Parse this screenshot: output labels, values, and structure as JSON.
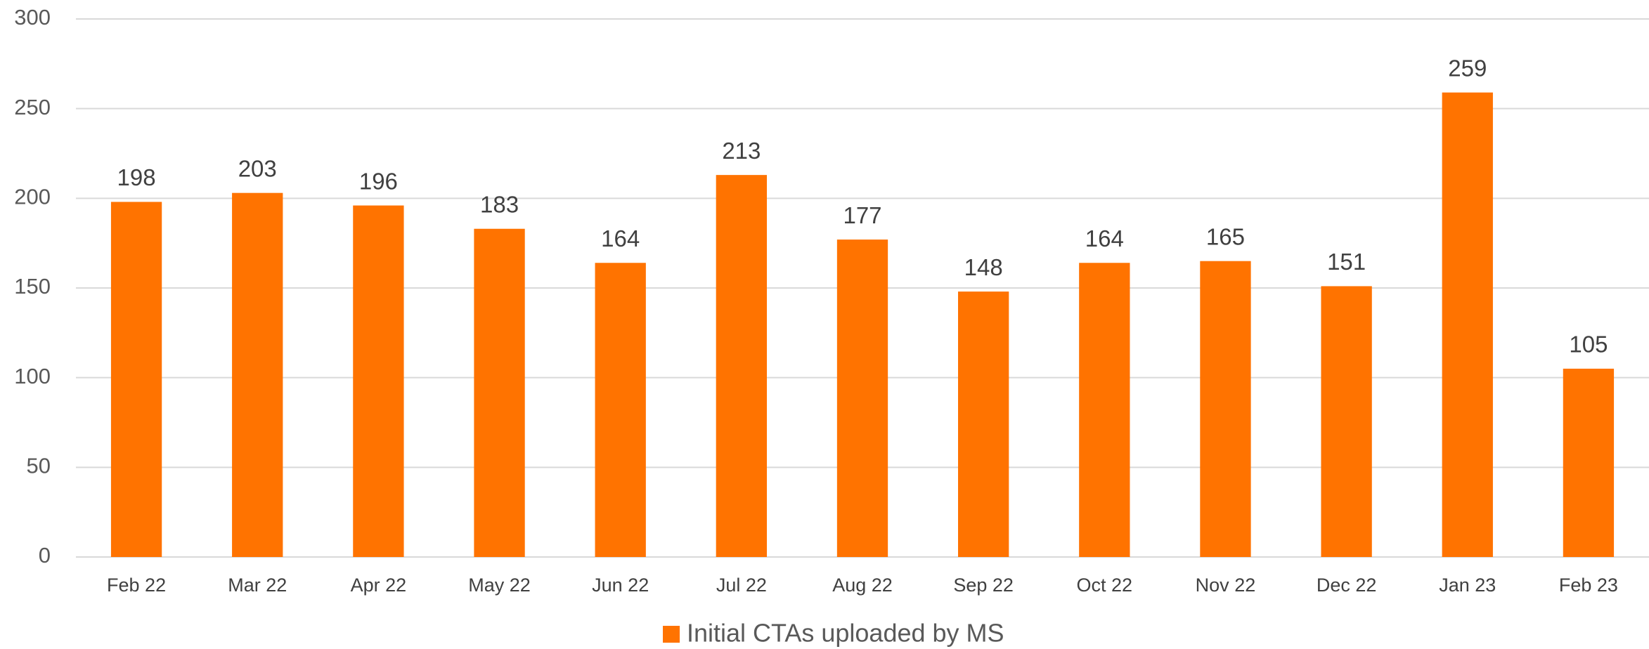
{
  "chart_data": {
    "type": "bar",
    "categories": [
      "Feb 22",
      "Mar 22",
      "Apr 22",
      "May 22",
      "Jun 22",
      "Jul 22",
      "Aug 22",
      "Sep 22",
      "Oct 22",
      "Nov 22",
      "Dec 22",
      "Jan 23",
      "Feb 23"
    ],
    "series": [
      {
        "name": "Initial CTAs uploaded by MS",
        "color": "#ff7300",
        "values": [
          198,
          203,
          196,
          183,
          164,
          213,
          177,
          148,
          164,
          165,
          151,
          259,
          105
        ]
      }
    ],
    "ylim": [
      0,
      300
    ],
    "yticks": [
      0,
      50,
      100,
      150,
      200,
      250,
      300
    ],
    "grid": true,
    "legend": "bottom"
  }
}
